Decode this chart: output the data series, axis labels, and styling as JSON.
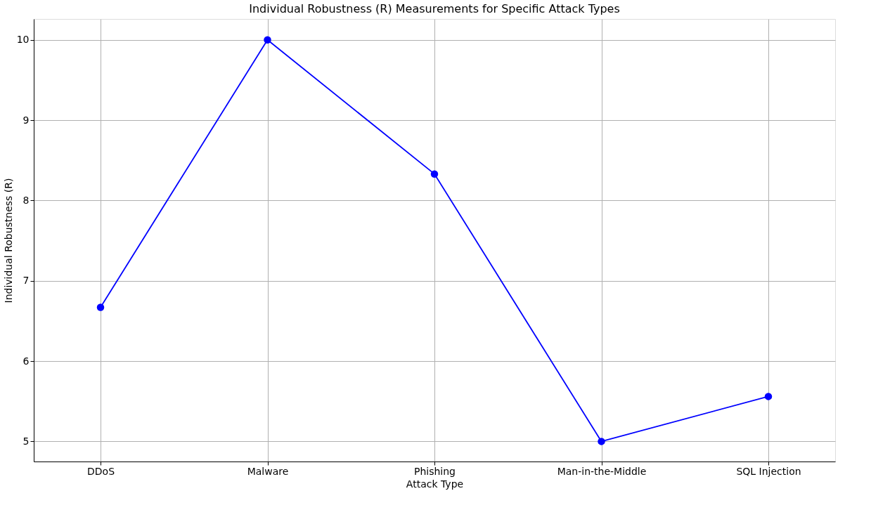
{
  "chart_data": {
    "type": "line",
    "title": "Individual Robustness (R) Measurements for Specific Attack Types",
    "xlabel": "Attack Type",
    "ylabel": "Individual Robustness (R)",
    "categories": [
      "DDoS",
      "Malware",
      "Phishing",
      "Man-in-the-Middle",
      "SQL Injection"
    ],
    "series": [
      {
        "color": "#0000ff",
        "values": [
          6.67,
          10.0,
          8.33,
          5.0,
          5.56
        ]
      }
    ],
    "ylim": [
      4.75,
      10.26
    ],
    "yticks": [
      5,
      6,
      7,
      8,
      9,
      10
    ],
    "grid": true,
    "marker": "circle",
    "line_style": "solid"
  }
}
